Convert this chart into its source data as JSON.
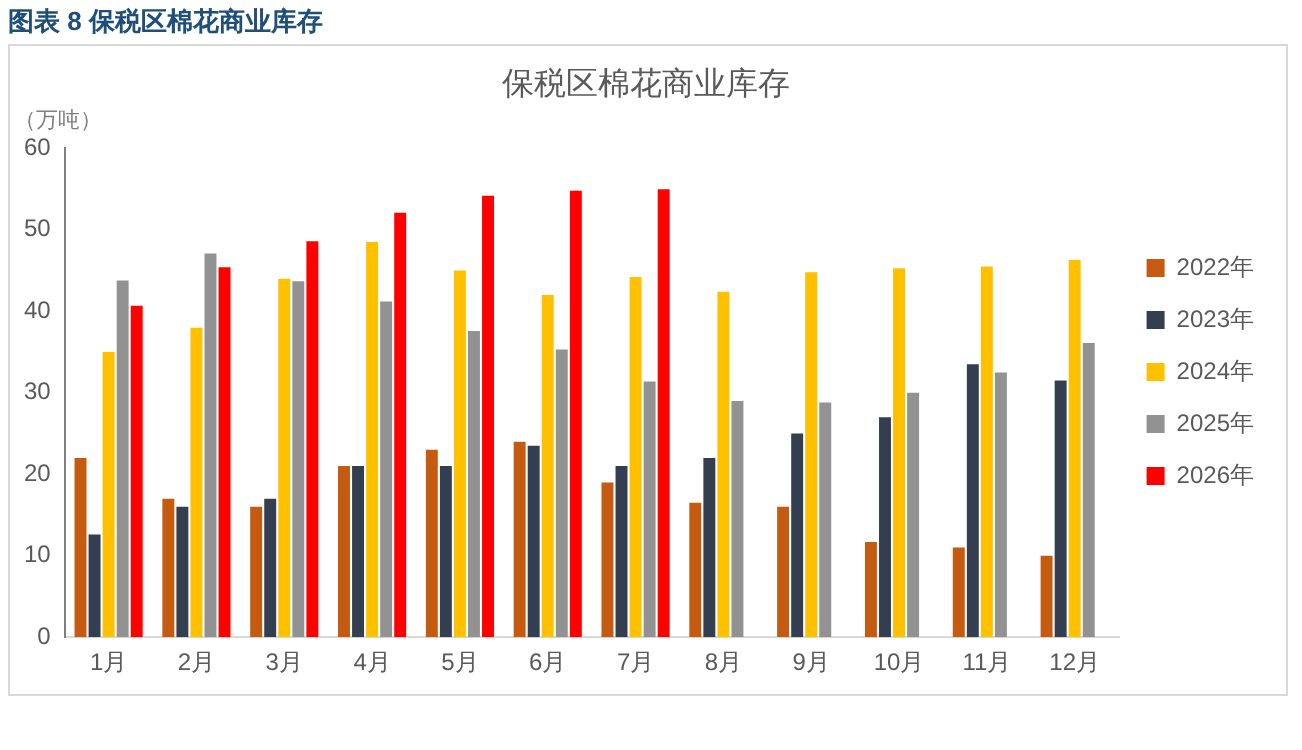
{
  "chart_data": {
    "type": "bar",
    "title": "保税区棉花商业库存",
    "ylabel": "（万吨）",
    "annotations": [
      "图表 8 保税区棉花商业库存"
    ],
    "categories": [
      "1月",
      "2月",
      "3月",
      "4月",
      "5月",
      "6月",
      "7月",
      "8月",
      "9月",
      "10月",
      "11月",
      "12月"
    ],
    "series": [
      {
        "name": "2022年",
        "color": "#c55a11",
        "values": [
          22,
          17,
          16,
          21,
          23,
          24,
          19,
          16.5,
          16,
          11.7,
          11,
          10
        ]
      },
      {
        "name": "2023年",
        "color": "#333f50",
        "values": [
          12.6,
          16,
          17,
          21,
          21,
          23.5,
          21,
          22,
          25,
          27,
          33.5,
          31.5
        ]
      },
      {
        "name": "2024年",
        "color": "#ffc000",
        "values": [
          35,
          38,
          44,
          48.5,
          45,
          42,
          44.2,
          42.4,
          44.8,
          45.3,
          45.5,
          46.3
        ]
      },
      {
        "name": "2025年",
        "color": "#929292",
        "values": [
          43.8,
          47.1,
          43.7,
          41.2,
          37.6,
          35.3,
          31.4,
          29,
          28.8,
          30,
          32.5,
          36.1
        ]
      },
      {
        "name": "2026年",
        "color": "#ff0000",
        "values": [
          40.7,
          45.4,
          48.6,
          52.1,
          54.2,
          54.8,
          55,
          null,
          null,
          null,
          null,
          null
        ]
      }
    ],
    "ylim": [
      0,
      60
    ],
    "yticks": [
      0,
      10,
      20,
      30,
      40,
      50,
      60
    ],
    "grid": false,
    "legend": "right"
  }
}
